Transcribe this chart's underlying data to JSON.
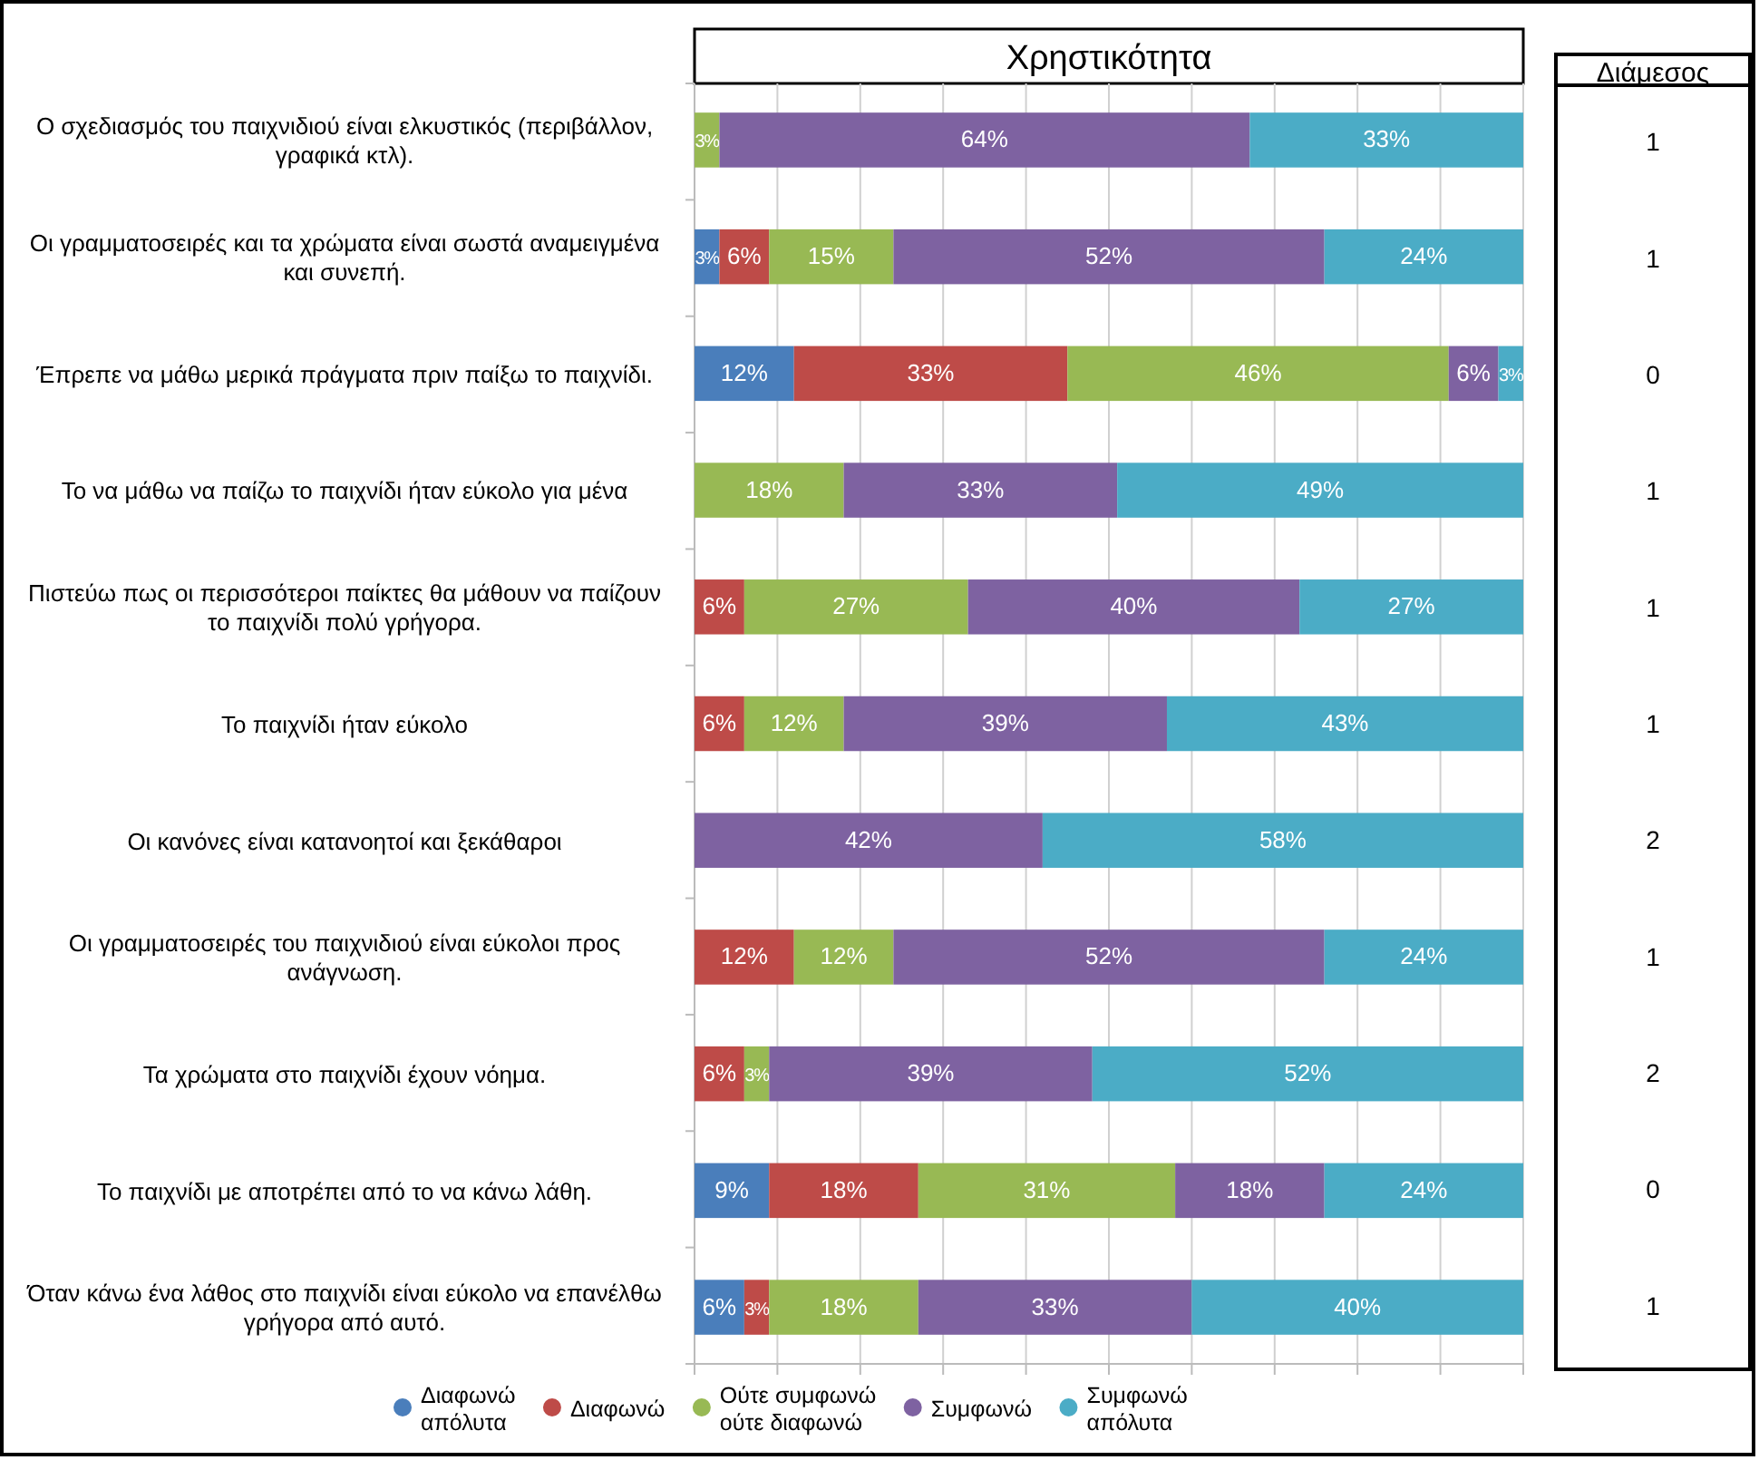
{
  "chart_data": [
    {
      "type": "bar",
      "title": "Χρηστικότητα",
      "orientation": "horizontal",
      "stacked": true,
      "categories": [
        "Ο σχεδιασμός του παιχνιδιού είναι ελκυστικός (περιβάλλον, γραφικά κτλ).",
        "Οι γραμματοσειρές και τα χρώματα είναι σωστά αναμειγμένα και συνεπή.",
        "Έπρεπε να μάθω μερικά πράγματα πριν παίξω το παιχνίδι.",
        "Το να μάθω να παίζω το παιχνίδι ήταν εύκολο για μένα",
        "Πιστεύω πως οι περισσότεροι παίκτες θα μάθουν να παίζουν το παιχνίδι πολύ γρήγορα.",
        "Το παιχνίδι ήταν εύκολο",
        "Οι κανόνες είναι κατανοητοί και ξεκάθαροι",
        "Οι γραμματοσειρές του παιχνιδιού είναι εύκολοι προς ανάγνωση.",
        "Τα χρώματα στο παιχνίδι έχουν νόημα.",
        "Το παιχνίδι με αποτρέπει από το να κάνω λάθη.",
        "Όταν κάνω ένα λάθος στο παιχνίδι είναι εύκολο να επανέλθω γρήγορα από αυτό."
      ],
      "series": [
        {
          "name": "Διαφωνώ απόλυτα",
          "color": "#4a7ebb",
          "values": [
            null,
            3,
            12,
            null,
            null,
            null,
            null,
            null,
            null,
            9,
            6
          ],
          "value_labels": [
            null,
            "3%",
            "12%",
            null,
            null,
            null,
            null,
            null,
            null,
            "9%",
            "6%"
          ]
        },
        {
          "name": "Διαφωνώ",
          "color": "#be4b48",
          "values": [
            null,
            6,
            33,
            null,
            6,
            6,
            null,
            12,
            6,
            18,
            3
          ],
          "value_labels": [
            null,
            "6%",
            "33%",
            null,
            "6%",
            "6%",
            null,
            "12%",
            "6%",
            "18%",
            "3%"
          ]
        },
        {
          "name": "Ούτε συμφωνώ ούτε διαφωνώ",
          "color": "#98b954",
          "values": [
            3,
            15,
            46,
            18,
            27,
            12,
            null,
            12,
            3,
            31,
            18
          ],
          "value_labels": [
            "3%",
            "15%",
            "46%",
            "18%",
            "27%",
            "12%",
            null,
            "12%",
            "3%",
            "31%",
            "18%"
          ]
        },
        {
          "name": "Συμφωνώ",
          "color": "#7e62a1",
          "values": [
            64,
            52,
            6,
            33,
            40,
            39,
            42,
            52,
            39,
            18,
            33
          ],
          "value_labels": [
            "64%",
            "52%",
            "6%",
            "33%",
            "40%",
            "39%",
            "42%",
            "52%",
            "39%",
            "18%",
            "33%"
          ]
        },
        {
          "name": "Συμφωνώ απόλυτα",
          "color": "#4bacc6",
          "values": [
            33,
            24,
            3,
            49,
            27,
            43,
            58,
            24,
            52,
            24,
            40
          ],
          "value_labels": [
            "33%",
            "24%",
            "3%",
            "49%",
            "27%",
            "43%",
            "58%",
            "24%",
            "52%",
            "24%",
            "40%"
          ]
        }
      ],
      "tick_labels": "y",
      "grid": "x",
      "legend": "bottom"
    },
    {
      "type": "other",
      "title": "Διάμεσος",
      "annotations": [
        "1",
        "1",
        "0",
        "1",
        "1",
        "1",
        "2",
        "1",
        "2",
        "0",
        "1"
      ]
    }
  ]
}
